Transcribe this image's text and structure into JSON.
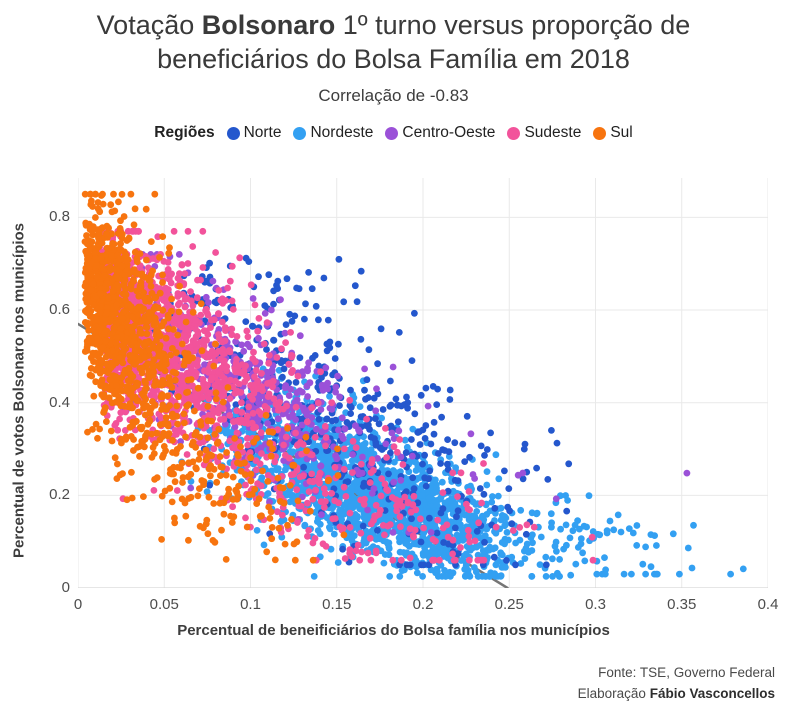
{
  "header": {
    "title_prefix": "Votação ",
    "title_bold": "Bolsonaro",
    "title_suffix": " 1º turno versus proporção de",
    "title_line2": "beneficiários do Bolsa Família em 2018",
    "subtitle": "Correlação de -0.83"
  },
  "legend": {
    "label": "Regiões",
    "items": [
      {
        "label": "Norte",
        "color": "#2457cd"
      },
      {
        "label": "Nordeste",
        "color": "#33a0f2"
      },
      {
        "label": "Centro-Oeste",
        "color": "#9b51d8"
      },
      {
        "label": "Sudeste",
        "color": "#f2539b"
      },
      {
        "label": "Sul",
        "color": "#f7740f"
      }
    ]
  },
  "footer": {
    "source": "Fonte: TSE, Governo Federal",
    "elaboration_prefix": "Elaboração ",
    "elaboration_name": "Fábio Vasconcellos"
  },
  "chart_data": {
    "type": "scatter",
    "title": "Votação Bolsonaro 1º turno versus proporção de beneficiários do Bolsa Família em 2018",
    "subtitle": "Correlação de -0.83",
    "correlation": -0.83,
    "xlabel": "Percentual de beneificiários do Bolsa família nos municípios",
    "ylabel": "Percentual de votos Bolsonaro nos municípios",
    "xlim": [
      0,
      0.4
    ],
    "ylim": [
      0,
      0.885
    ],
    "x_ticks": [
      {
        "v": 0,
        "label": "0"
      },
      {
        "v": 0.05,
        "label": "0.05"
      },
      {
        "v": 0.1,
        "label": "0.1"
      },
      {
        "v": 0.15,
        "label": "0.15"
      },
      {
        "v": 0.2,
        "label": "0.2"
      },
      {
        "v": 0.25,
        "label": "0.25"
      },
      {
        "v": 0.3,
        "label": "0.3"
      },
      {
        "v": 0.35,
        "label": "0.35"
      },
      {
        "v": 0.4,
        "label": "0.4"
      }
    ],
    "y_ticks": [
      {
        "v": 0,
        "label": "0"
      },
      {
        "v": 0.2,
        "label": "0.2"
      },
      {
        "v": 0.4,
        "label": "0.4"
      },
      {
        "v": 0.6,
        "label": "0.6"
      },
      {
        "v": 0.8,
        "label": "0.8"
      }
    ],
    "grid": true,
    "legend_position": "top",
    "point_radius": 3.4,
    "grid_color": "#e9e9e9",
    "axis_line_color": "#d6d6d6",
    "trend_line": {
      "x1": 0,
      "y1": 0.57,
      "x2": 0.249,
      "y2": 0,
      "color": "#757575",
      "width": 2.5
    },
    "seed": 1337,
    "draw_order": [
      "Nordeste",
      "Norte",
      "Centro-Oeste",
      "Sudeste",
      "Sul"
    ],
    "series": [
      {
        "name": "Norte",
        "color": "#2457cd",
        "clusters": [
          {
            "n": 400,
            "xm": 0.15,
            "xs": 0.055,
            "xmin": 0.035,
            "xmax": 0.315,
            "a": 0.62,
            "b": -1.75,
            "ys": 0.11,
            "ymin": 0.05,
            "ymax": 0.78
          },
          {
            "n": 55,
            "xm": 0.095,
            "xs": 0.032,
            "xmin": 0.04,
            "xmax": 0.18,
            "a": 0.63,
            "b": 0,
            "ys": 0.055,
            "ymin": 0.5,
            "ymax": 0.76
          }
        ]
      },
      {
        "name": "Nordeste",
        "color": "#33a0f2",
        "clusters": [
          {
            "n": 1480,
            "xm": 0.175,
            "xs": 0.038,
            "xmin": 0.075,
            "xmax": 0.3,
            "a": 0.425,
            "b": -1.35,
            "ys": 0.062,
            "ymin": 0.025,
            "ymax": 0.55
          },
          {
            "n": 220,
            "xm": 0.115,
            "xs": 0.027,
            "xmin": 0.06,
            "xmax": 0.185,
            "a": 0.33,
            "b": 0,
            "ys": 0.07,
            "ymin": 0.1,
            "ymax": 0.5
          },
          {
            "n": 90,
            "xm": 0.285,
            "xs": 0.042,
            "xmin": 0.225,
            "xmax": 0.39,
            "a": 0.27,
            "b": -0.55,
            "ys": 0.05,
            "ymin": 0.03,
            "ymax": 0.3
          }
        ]
      },
      {
        "name": "Centro-Oeste",
        "color": "#9b51d8",
        "clusters": [
          {
            "n": 430,
            "xm": 0.1,
            "xs": 0.042,
            "xmin": 0.025,
            "xmax": 0.235,
            "a": 0.6,
            "b": -1.8,
            "ys": 0.085,
            "ymin": 0.12,
            "ymax": 0.72
          },
          {
            "n": 6,
            "xm": 0.26,
            "xs": 0.035,
            "xmin": 0.2,
            "xmax": 0.34,
            "a": 0.45,
            "b": -0.9,
            "ys": 0.05,
            "ymin": 0.1,
            "ymax": 0.35
          }
        ]
      },
      {
        "name": "Sudeste",
        "color": "#f2539b",
        "clusters": [
          {
            "n": 1360,
            "xm": 0.012,
            "xs": 0.048,
            "half": true,
            "xmin": 0.006,
            "xmax": 0.23,
            "a": 0.625,
            "b": -2.1,
            "ys": 0.095,
            "ymin": 0.08,
            "ymax": 0.77
          },
          {
            "n": 200,
            "xm": 0.16,
            "xs": 0.05,
            "xmin": 0.06,
            "xmax": 0.33,
            "a": 0.33,
            "b": -0.9,
            "ys": 0.07,
            "ymin": 0.06,
            "ymax": 0.45
          }
        ]
      },
      {
        "name": "Sul",
        "color": "#f7740f",
        "clusters": [
          {
            "n": 910,
            "xm": 0.004,
            "xs": 0.026,
            "half": true,
            "xmin": 0.003,
            "xmax": 0.13,
            "a": 0.66,
            "b": -3.0,
            "ys": 0.105,
            "ymin": 0.09,
            "ymax": 0.85
          },
          {
            "n": 250,
            "xm": 0.07,
            "xs": 0.036,
            "xmin": 0.012,
            "xmax": 0.185,
            "a": 0.4,
            "b": -1.8,
            "ys": 0.09,
            "ymin": 0.06,
            "ymax": 0.62
          }
        ]
      }
    ],
    "extra_points": [
      {
        "series": "Centro-Oeste",
        "x": 0.353,
        "y": 0.248
      }
    ]
  }
}
